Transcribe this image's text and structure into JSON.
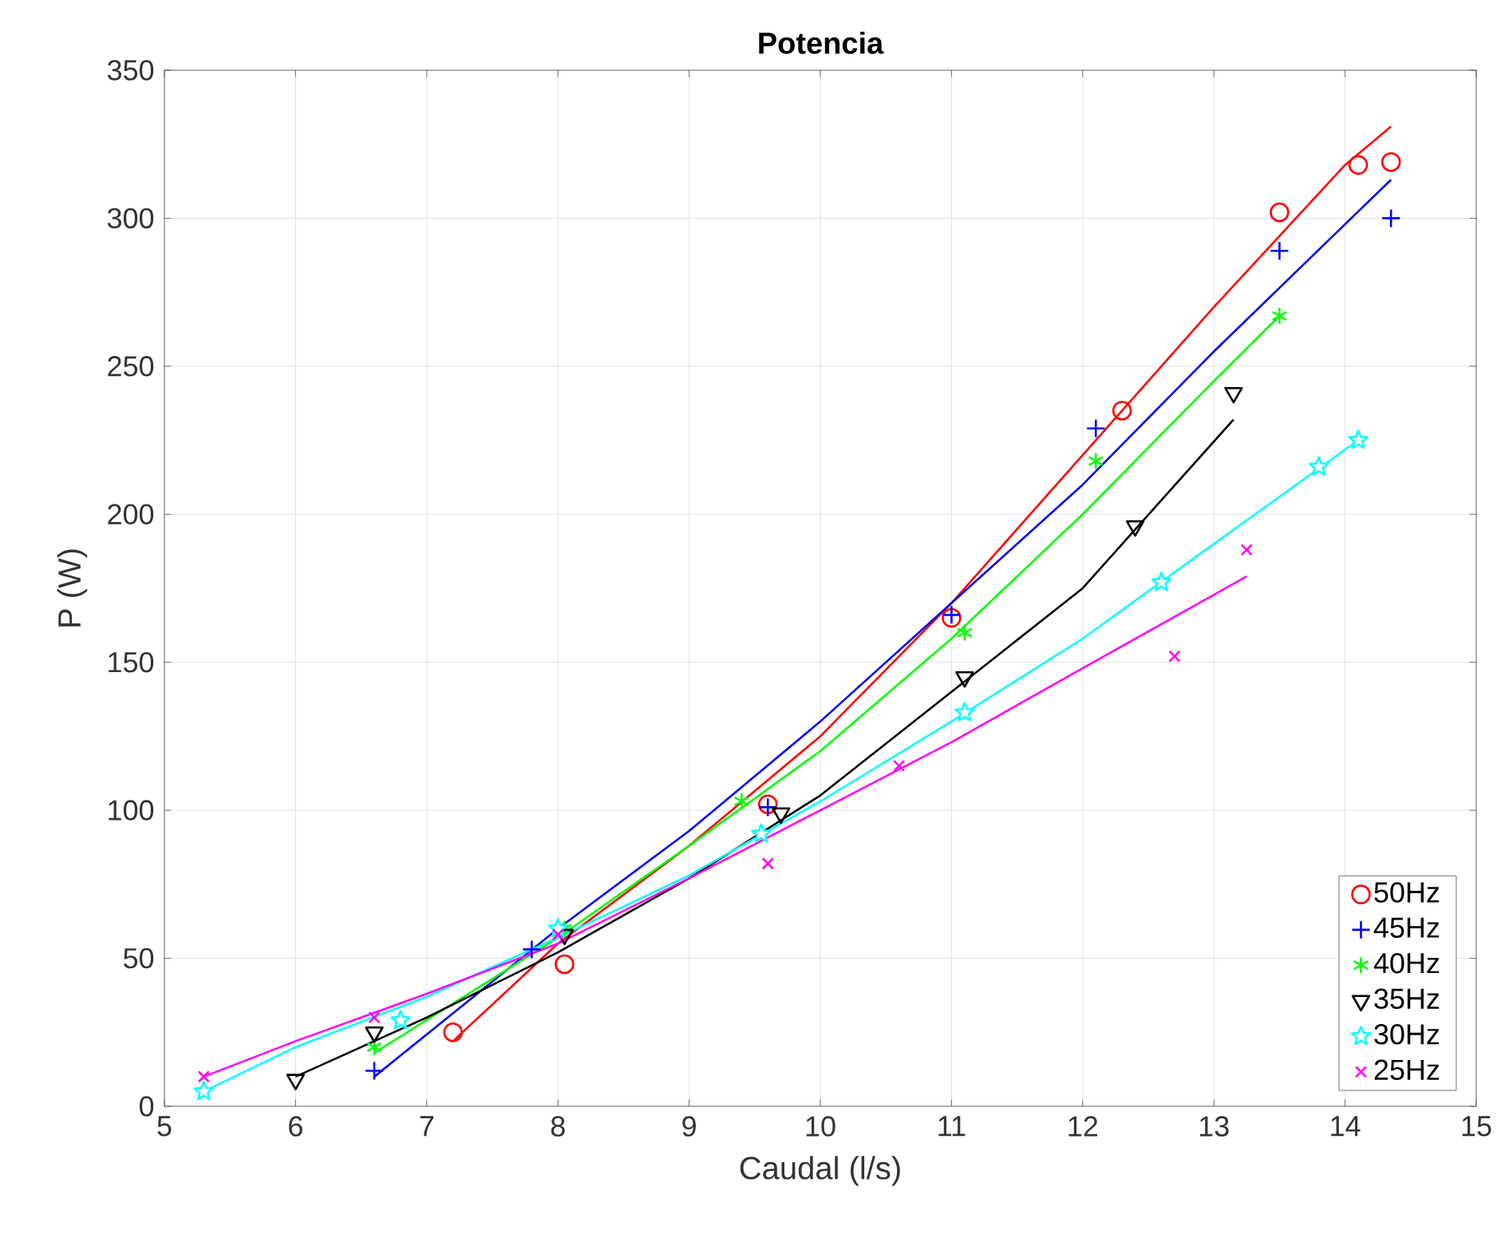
{
  "chart_data": {
    "type": "scatter",
    "title": "Potencia",
    "xlabel": "Caudal (l/s)",
    "ylabel": "P (W)",
    "xlim": [
      5,
      15
    ],
    "xticks": [
      5,
      6,
      7,
      8,
      9,
      10,
      11,
      12,
      13,
      14,
      15
    ],
    "ylim": [
      0,
      350
    ],
    "yticks": [
      0,
      50,
      100,
      150,
      200,
      250,
      300,
      350
    ],
    "grid": true,
    "legend": "bottom right",
    "series": [
      {
        "name": "50Hz",
        "color": "#ff0000",
        "marker": "circle",
        "x": [
          7.2,
          8.05,
          9.6,
          11.0,
          12.3,
          13.5,
          14.1,
          14.35
        ],
        "values": [
          25,
          48,
          102,
          165,
          235,
          302,
          318,
          319
        ]
      },
      {
        "name": "45Hz",
        "color": "#0000ff",
        "marker": "plus",
        "x": [
          6.6,
          7.8,
          9.6,
          11.0,
          12.1,
          13.5,
          14.35
        ],
        "values": [
          12,
          53,
          101,
          166,
          229,
          289,
          300
        ]
      },
      {
        "name": "40Hz",
        "color": "#00ff00",
        "marker": "cross",
        "x": [
          6.6,
          8.05,
          9.4,
          11.1,
          12.1,
          13.5
        ],
        "values": [
          20,
          60,
          103,
          160,
          218,
          267
        ]
      },
      {
        "name": "35Hz",
        "color": "#000000",
        "marker": "triangle down",
        "x": [
          6.0,
          6.6,
          8.05,
          9.7,
          11.1,
          12.4,
          13.15
        ],
        "values": [
          9,
          25,
          58,
          99,
          145,
          196,
          241
        ]
      },
      {
        "name": "30Hz",
        "color": "#00ffff",
        "marker": "star",
        "x": [
          5.3,
          6.8,
          8.0,
          9.55,
          11.1,
          12.6,
          13.8,
          14.1
        ],
        "values": [
          5,
          29,
          60,
          92,
          133,
          177,
          216,
          225
        ]
      },
      {
        "name": "25Hz",
        "color": "#ff00ff",
        "marker": "x",
        "x": [
          5.3,
          6.6,
          8.0,
          9.6,
          10.6,
          12.7,
          13.25
        ],
        "values": [
          10,
          30,
          58,
          82,
          115,
          152,
          188
        ]
      },
      {
        "type": "line",
        "color": "#ff0000",
        "x": [
          7.2,
          8,
          9,
          10,
          11,
          12,
          13,
          14,
          14.35
        ],
        "values": [
          22,
          55,
          88,
          125,
          170,
          220,
          270,
          318,
          331
        ]
      },
      {
        "type": "line",
        "color": "#0000ff",
        "x": [
          6.6,
          8,
          9,
          10,
          11,
          12,
          13,
          14,
          14.35
        ],
        "values": [
          10,
          60,
          93,
          130,
          170,
          210,
          255,
          298,
          313
        ]
      },
      {
        "type": "line",
        "color": "#00ff00",
        "x": [
          6.6,
          8,
          9,
          10,
          11,
          12,
          13,
          13.5
        ],
        "values": [
          18,
          57,
          88,
          120,
          158,
          200,
          245,
          267
        ]
      },
      {
        "type": "line",
        "color": "#000000",
        "x": [
          6.0,
          7,
          8,
          9,
          10,
          11,
          12,
          13.15
        ],
        "values": [
          10,
          30,
          52,
          77,
          105,
          140,
          175,
          232
        ]
      },
      {
        "type": "line",
        "color": "#00ffff",
        "x": [
          5.3,
          6,
          7,
          8,
          9,
          10,
          11,
          12,
          13,
          14.1
        ],
        "values": [
          5,
          20,
          37,
          57,
          78,
          103,
          130,
          158,
          190,
          225
        ]
      },
      {
        "type": "line",
        "color": "#ff00ff",
        "x": [
          5.3,
          6,
          7,
          8,
          9,
          10,
          11,
          12,
          13.25
        ],
        "values": [
          10,
          22,
          38,
          55,
          77,
          100,
          123,
          148,
          179
        ]
      }
    ]
  }
}
